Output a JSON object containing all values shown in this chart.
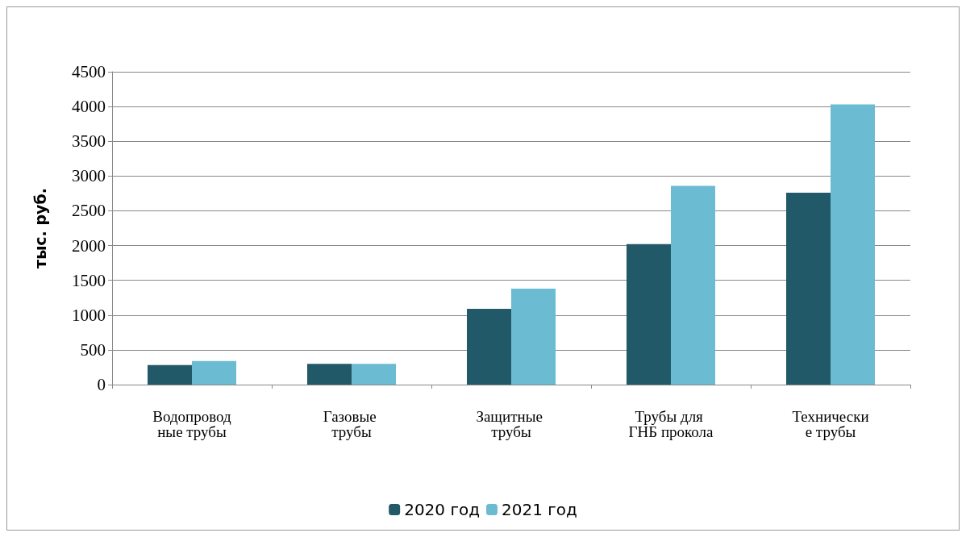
{
  "chart_data": {
    "type": "bar",
    "ylabel": "тыс. руб.",
    "categories": [
      "Водопроводные трубы",
      "Газовые трубы",
      "Защитные трубы",
      "Трубы для ГНБ прокола",
      "Технические трубы"
    ],
    "series": [
      {
        "name": "2020 год",
        "color": "#215968",
        "values": [
          280,
          300,
          1090,
          2020,
          2760
        ]
      },
      {
        "name": "2021 год",
        "color": "#6bbbd2",
        "values": [
          340,
          300,
          1380,
          2860,
          4030
        ]
      }
    ],
    "ylim": [
      0,
      4500
    ],
    "yticks": [
      0,
      500,
      1000,
      1500,
      2000,
      2500,
      3000,
      3500,
      4000,
      4500
    ],
    "grid": "y",
    "legend": "bottom"
  }
}
